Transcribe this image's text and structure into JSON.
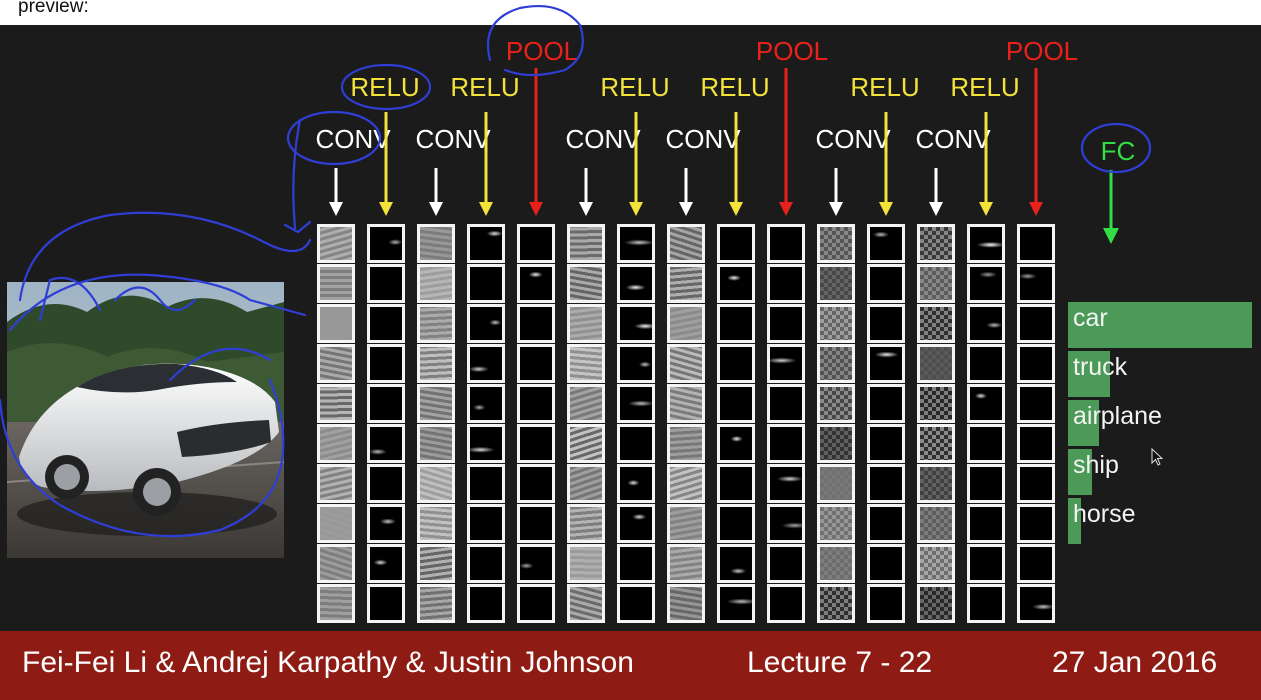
{
  "header": {
    "preview_label": "preview:"
  },
  "footer": {
    "authors": "Fei-Fei Li & Andrej Karpathy & Justin Johnson",
    "lecture": "Lecture 7 - 22",
    "date": "27 Jan 2016"
  },
  "diagram": {
    "layers": [
      {
        "type": "CONV",
        "label": "CONV",
        "tone": "gray"
      },
      {
        "type": "RELU",
        "label": "RELU",
        "tone": "sparse"
      },
      {
        "type": "CONV",
        "label": "CONV",
        "tone": "gray"
      },
      {
        "type": "RELU",
        "label": "RELU",
        "tone": "sparse"
      },
      {
        "type": "POOL",
        "label": "POOL",
        "tone": "sparse"
      },
      {
        "type": "CONV",
        "label": "CONV",
        "tone": "gray"
      },
      {
        "type": "RELU",
        "label": "RELU",
        "tone": "sparse"
      },
      {
        "type": "CONV",
        "label": "CONV",
        "tone": "gray"
      },
      {
        "type": "RELU",
        "label": "RELU",
        "tone": "sparse"
      },
      {
        "type": "POOL",
        "label": "POOL",
        "tone": "sparse"
      },
      {
        "type": "CONV",
        "label": "CONV",
        "tone": "noise"
      },
      {
        "type": "RELU",
        "label": "RELU",
        "tone": "sparse"
      },
      {
        "type": "CONV",
        "label": "CONV",
        "tone": "noise"
      },
      {
        "type": "RELU",
        "label": "RELU",
        "tone": "sparse"
      },
      {
        "type": "POOL",
        "label": "POOL",
        "tone": "sparse"
      }
    ],
    "fc_label": "FC",
    "colors": {
      "conv": "#ffffff",
      "relu": "#f2e23a",
      "pool": "#e8221b",
      "fc": "#33dd44",
      "bar": "#4c9a58",
      "annotation": "#2f3fd6",
      "footer": "#8e1c14"
    },
    "maps_per_layer": 10
  },
  "scores": [
    {
      "label": "car",
      "value": 1.0
    },
    {
      "label": "truck",
      "value": 0.23
    },
    {
      "label": "airplane",
      "value": 0.17
    },
    {
      "label": "ship",
      "value": 0.13
    },
    {
      "label": "horse",
      "value": 0.07
    }
  ],
  "icons": {
    "cursor": "mouse-pointer-icon",
    "car": "car-photo"
  }
}
